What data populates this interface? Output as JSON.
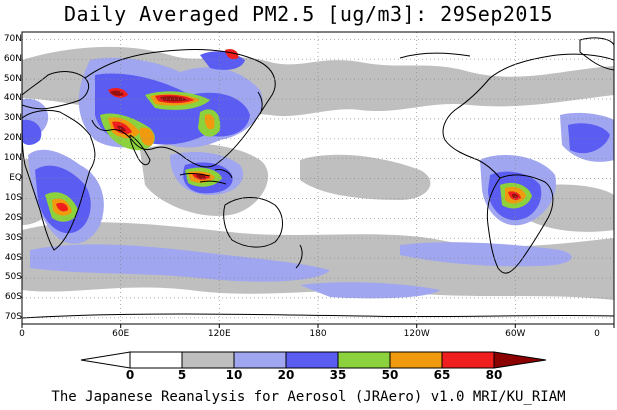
{
  "title": "Daily Averaged PM2.5 [ug/m3]: 29Sep2015",
  "lat_labels": [
    "70N",
    "60N",
    "50N",
    "40N",
    "30N",
    "20N",
    "10N",
    "EQ",
    "10S",
    "20S",
    "30S",
    "40S",
    "50S",
    "60S",
    "70S"
  ],
  "lon_labels": [
    "0",
    "60E",
    "120E",
    "180",
    "120W",
    "60W",
    "0"
  ],
  "colorbar": {
    "ticks": [
      "0",
      "5",
      "10",
      "20",
      "35",
      "50",
      "65",
      "80"
    ],
    "colors": [
      "#ffffff",
      "#bfbfbf",
      "#a0a6ef",
      "#5a5cf2",
      "#8cd23c",
      "#f09a10",
      "#f01e1e",
      "#961010"
    ],
    "arrow_low": "#ffffff",
    "arrow_high": "#8b0000"
  },
  "palette": {
    "land_outline": "#000000",
    "grid": "#888888",
    "level_5": "#bfbfbf",
    "level_10": "#a0a6ef",
    "level_20": "#5a5cf2",
    "level_35": "#8cd23c",
    "level_50": "#f09a10",
    "level_65": "#f01e1e",
    "level_80": "#961010"
  },
  "footer": "The Japanese Reanalysis for Aerosol (JRAero) v1.0 MRI/KU_RIAM"
}
